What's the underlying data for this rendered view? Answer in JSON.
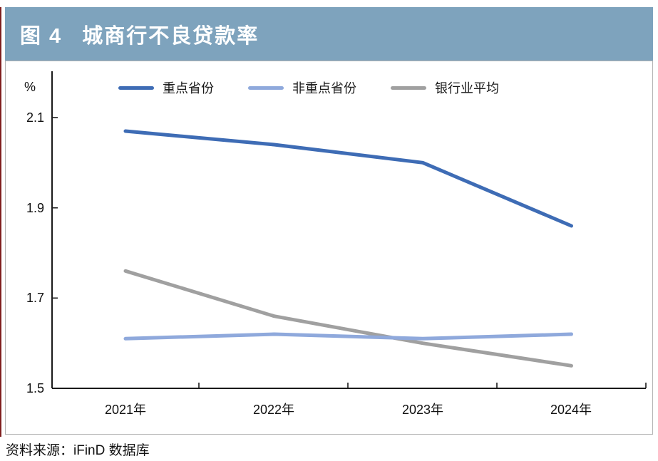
{
  "figure": {
    "label": "图 4",
    "title": "城商行不良贷款率"
  },
  "source": "资料来源：iFinD 数据库",
  "colors": {
    "header_bg": "#7ea3bd",
    "accent_bar": "#7f1f1f",
    "series_key": "#3e6cb5",
    "series_nonkey": "#8fa9dc",
    "series_avg": "#a0a0a0",
    "axis": "#1a1a1a",
    "card_border": "#b3b3b3"
  },
  "chart_data": {
    "type": "line",
    "title": "城商行不良贷款率",
    "unit_label": "%",
    "categories": [
      "2021年",
      "2022年",
      "2023年",
      "2024年"
    ],
    "series": [
      {
        "name": "重点省份",
        "values": [
          2.07,
          2.04,
          2.0,
          1.86
        ]
      },
      {
        "name": "非重点省份",
        "values": [
          1.61,
          1.62,
          1.61,
          1.62
        ]
      },
      {
        "name": "银行业平均",
        "values": [
          1.76,
          1.66,
          1.6,
          1.55
        ]
      }
    ],
    "y_ticks_top_to_bottom": [
      "2.1",
      "1.9",
      "1.7",
      "1.5"
    ],
    "ylim": [
      1.5,
      2.2
    ],
    "grid": false,
    "legend_position": "top"
  }
}
